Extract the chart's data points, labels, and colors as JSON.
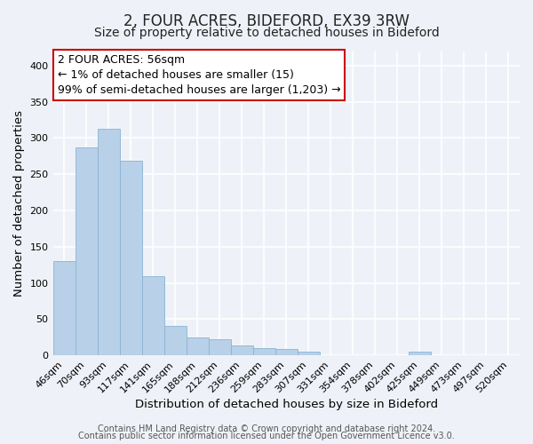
{
  "title": "2, FOUR ACRES, BIDEFORD, EX39 3RW",
  "subtitle": "Size of property relative to detached houses in Bideford",
  "xlabel": "Distribution of detached houses by size in Bideford",
  "ylabel": "Number of detached properties",
  "categories": [
    "46sqm",
    "70sqm",
    "93sqm",
    "117sqm",
    "141sqm",
    "165sqm",
    "188sqm",
    "212sqm",
    "236sqm",
    "259sqm",
    "283sqm",
    "307sqm",
    "331sqm",
    "354sqm",
    "378sqm",
    "402sqm",
    "425sqm",
    "449sqm",
    "473sqm",
    "497sqm",
    "520sqm"
  ],
  "values": [
    130,
    287,
    313,
    268,
    109,
    40,
    25,
    22,
    13,
    10,
    9,
    5,
    0,
    0,
    0,
    0,
    5,
    0,
    0,
    0,
    0
  ],
  "bar_color": "#b8d0e8",
  "bar_edge_color": "#8ab4d4",
  "highlight_bar_index": 0,
  "highlight_bar_edge_color": "#cc0000",
  "ylim": [
    0,
    420
  ],
  "yticks": [
    0,
    50,
    100,
    150,
    200,
    250,
    300,
    350,
    400
  ],
  "annotation_text": "2 FOUR ACRES: 56sqm\n← 1% of detached houses are smaller (15)\n99% of semi-detached houses are larger (1,203) →",
  "annotation_box_edge_color": "#cc0000",
  "footer_line1": "Contains HM Land Registry data © Crown copyright and database right 2024.",
  "footer_line2": "Contains public sector information licensed under the Open Government Licence v3.0.",
  "background_color": "#eef2f8",
  "grid_color": "#ffffff",
  "title_fontsize": 12,
  "subtitle_fontsize": 10,
  "axis_label_fontsize": 9.5,
  "tick_fontsize": 8,
  "annotation_fontsize": 9,
  "footer_fontsize": 7
}
